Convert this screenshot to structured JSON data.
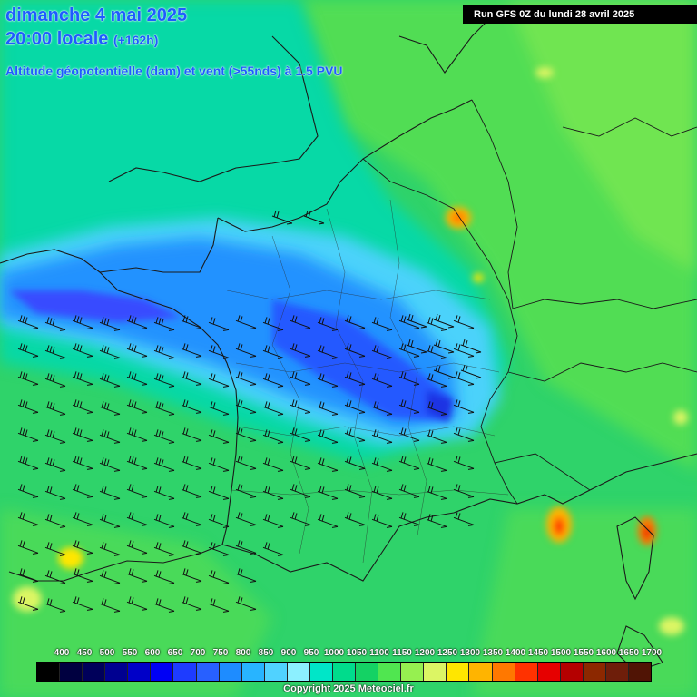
{
  "header": {
    "date": "dimanche 4 mai 2025",
    "time": "20:00 locale",
    "forecast_hour": "(+162h)",
    "parameter": "Altitude géopotentielle (dam) et vent (>55nds) à 1.5 PVU",
    "run": "Run GFS 0Z du lundi 28 avril 2025"
  },
  "legend": {
    "values": [
      "400",
      "450",
      "500",
      "550",
      "600",
      "650",
      "700",
      "750",
      "800",
      "850",
      "900",
      "950",
      "1000",
      "1050",
      "1100",
      "1150",
      "1200",
      "1250",
      "1300",
      "1350",
      "1400",
      "1450",
      "1500",
      "1550",
      "1600",
      "1650",
      "1700"
    ],
    "colors": [
      "#000000",
      "#000040",
      "#00005a",
      "#000090",
      "#0000c8",
      "#0000f5",
      "#1e3cff",
      "#2860ff",
      "#1e8cff",
      "#28b4ff",
      "#50d2ff",
      "#8cf0ff",
      "#00e6c8",
      "#00dc8c",
      "#14d264",
      "#50e650",
      "#96f050",
      "#dcf564",
      "#ffe600",
      "#ffb400",
      "#ff7800",
      "#ff3200",
      "#e60000",
      "#b40000",
      "#8c2800",
      "#6e1e0a",
      "#501405"
    ],
    "unit": "dam"
  },
  "map": {
    "region": "France",
    "field": "geopotential height at 1.5 PVU",
    "wind_threshold": ">55nds",
    "trough_color": "#1e5cff",
    "ridge_color": "#ff7800"
  },
  "footer": {
    "copyright": "Copyright 2025 Meteociel.fr"
  }
}
